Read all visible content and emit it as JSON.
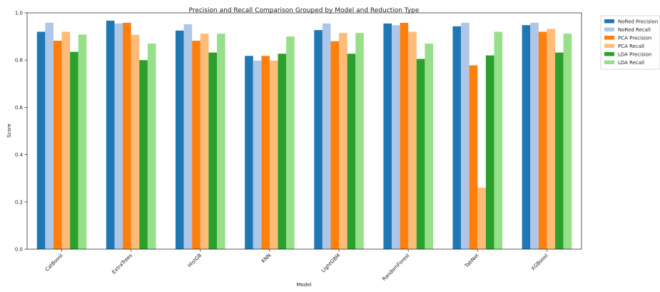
{
  "chart_data": {
    "type": "bar",
    "title": "Precision and Recall Comparison Grouped by Model and Reduction Type",
    "xlabel": "Model",
    "ylabel": "Score",
    "ylim": [
      0,
      1.0
    ],
    "yticks": [
      "0.0",
      "0.2",
      "0.4",
      "0.6",
      "0.8",
      "1.0"
    ],
    "grid": false,
    "legend_position": "outside-top-right",
    "categories": [
      "CatBoost",
      "ExtraTrees",
      "HistGB",
      "KNN",
      "LightGBM",
      "RandomForest",
      "TabNet",
      "XGBoost"
    ],
    "series": [
      {
        "name": "NoRed Precision",
        "color": "#1f77b4",
        "values": [
          0.92,
          0.967,
          0.925,
          0.818,
          0.927,
          0.955,
          0.943,
          0.948
        ]
      },
      {
        "name": "NoRed Recall",
        "color": "#aec7e8",
        "values": [
          0.958,
          0.955,
          0.952,
          0.798,
          0.955,
          0.948,
          0.958,
          0.958
        ]
      },
      {
        "name": "PCA Precision",
        "color": "#ff7f0e",
        "values": [
          0.882,
          0.958,
          0.882,
          0.818,
          0.88,
          0.958,
          0.778,
          0.92
        ]
      },
      {
        "name": "PCA Recall",
        "color": "#ffbb78",
        "values": [
          0.92,
          0.907,
          0.912,
          0.798,
          0.915,
          0.92,
          0.26,
          0.932
        ]
      },
      {
        "name": "LDA Precision",
        "color": "#2ca02c",
        "values": [
          0.835,
          0.8,
          0.832,
          0.827,
          0.827,
          0.805,
          0.82,
          0.832
        ]
      },
      {
        "name": "LDA Recall",
        "color": "#98df8a",
        "values": [
          0.908,
          0.87,
          0.912,
          0.9,
          0.915,
          0.87,
          0.92,
          0.912
        ]
      }
    ]
  }
}
